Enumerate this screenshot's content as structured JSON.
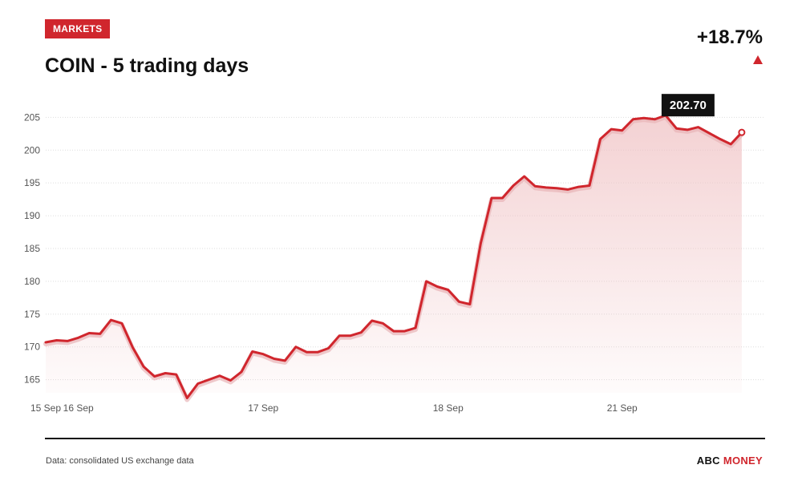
{
  "header": {
    "badge": "MARKETS",
    "title": "COIN - 5 trading days",
    "change": "+18.7%"
  },
  "colors": {
    "accent": "#d0262d",
    "line": "#d0262d",
    "fill": "#f4d4d5",
    "grid": "#dddddd",
    "text": "#111111"
  },
  "chart_data": {
    "type": "area",
    "title": "COIN - 5 trading days",
    "xlabel": "",
    "ylabel": "",
    "ylim": [
      163,
      207
    ],
    "xlim": [
      0,
      66
    ],
    "yticks": [
      165,
      170,
      175,
      180,
      185,
      190,
      195,
      200,
      205
    ],
    "x_ticks": [
      {
        "label": "15 Sep",
        "x": 0
      },
      {
        "label": "16 Sep",
        "x": 3
      },
      {
        "label": "17 Sep",
        "x": 20
      },
      {
        "label": "18 Sep",
        "x": 37
      },
      {
        "label": "21 Sep",
        "x": 53
      }
    ],
    "grid": true,
    "legend": "none",
    "last_value_label": "202.70",
    "series": [
      {
        "values": [
          170.7,
          171.0,
          170.9,
          171.4,
          172.1,
          172.0,
          174.1,
          173.6,
          169.9,
          167.0,
          165.5,
          166.0,
          165.8,
          162.2,
          164.4,
          165.0,
          165.6,
          164.9,
          166.2,
          169.3,
          168.9,
          168.2,
          167.9,
          170.0,
          169.2,
          169.2,
          169.8,
          171.7,
          171.7,
          172.2,
          174.0,
          173.6,
          172.4,
          172.4,
          172.9,
          180.0,
          179.2,
          178.7,
          176.9,
          176.5,
          185.8,
          192.7,
          192.7,
          194.6,
          196.0,
          194.5,
          194.3,
          194.2,
          194.0,
          194.4,
          194.6,
          201.7,
          203.2,
          203.0,
          204.7,
          204.9,
          204.7,
          205.3,
          203.3,
          203.1,
          203.5,
          202.6,
          201.7,
          200.9,
          202.7
        ]
      }
    ]
  },
  "footer": {
    "source": "Data: consolidated US exchange data",
    "brand_left": "ABC",
    "brand_right": "MONEY"
  }
}
